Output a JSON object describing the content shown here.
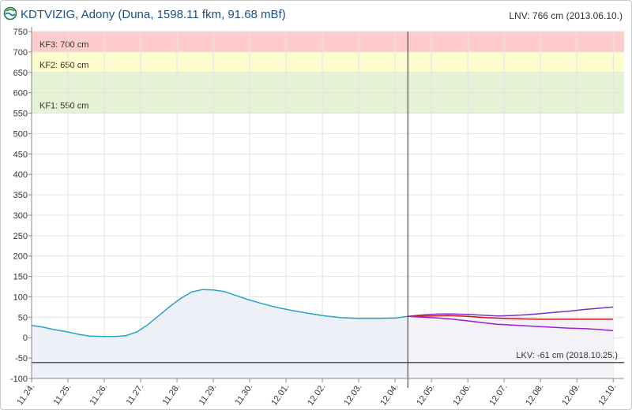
{
  "header": {
    "title": "KDTVIZIG, Adony (Duna, 1598.11 fkm, 91.68 mBf)",
    "lnv": "LNV: 766 cm (2013.06.10.)",
    "logo_icon": "water-gauge-logo-icon"
  },
  "chart_data": {
    "type": "line",
    "title": "KDTVIZIG, Adony (Duna, 1598.11 fkm, 91.68 mBf)",
    "xlabel": "",
    "ylabel": "",
    "ylim": [
      -100,
      750
    ],
    "yticks": [
      -100,
      -50,
      0,
      50,
      100,
      150,
      200,
      250,
      300,
      350,
      400,
      450,
      500,
      550,
      600,
      650,
      700,
      750
    ],
    "xticks": [
      "11.24.",
      "11.25.",
      "11.26.",
      "11.27.",
      "11.28.",
      "11.29.",
      "11.30.",
      "12.01.",
      "12.02.",
      "12.03.",
      "12.04.",
      "12.05.",
      "12.06.",
      "12.07.",
      "12.08.",
      "12.09.",
      "12.10."
    ],
    "xlim": [
      0,
      16.3
    ],
    "grid": true,
    "now_x": 10.35,
    "bands": [
      {
        "label": "KF3: 700 cm",
        "from": 700,
        "to": 750,
        "color": "#ffcccc"
      },
      {
        "label": "KF2: 650 cm",
        "from": 650,
        "to": 700,
        "color": "#fcfccc"
      },
      {
        "label": "KF1: 550 cm",
        "from": 550,
        "to": 650,
        "color": "#e6f2d5"
      }
    ],
    "lkv": {
      "label": "LKV: -61 cm (2018.10.25.)",
      "value": -61
    },
    "series": [
      {
        "color": "#27a3c8",
        "x": [
          0,
          0.3,
          0.6,
          1.0,
          1.3,
          1.6,
          2.0,
          2.3,
          2.6,
          2.9,
          3.2,
          3.5,
          3.8,
          4.1,
          4.4,
          4.7,
          5.0,
          5.3,
          5.6,
          6.0,
          6.4,
          6.8,
          7.2,
          7.6,
          8.0,
          8.5,
          9.0,
          9.5,
          10.0,
          10.35
        ],
        "y": [
          30,
          26,
          20,
          14,
          8,
          4,
          3,
          3,
          5,
          14,
          32,
          54,
          76,
          96,
          112,
          118,
          117,
          113,
          104,
          92,
          82,
          73,
          66,
          60,
          54,
          49,
          47,
          47,
          48,
          52
        ]
      },
      {
        "color": "#7a2fc4",
        "x": [
          10.35,
          10.8,
          11.2,
          11.6,
          12.0,
          12.4,
          12.8,
          13.2,
          13.6,
          14.0,
          14.4,
          14.8,
          15.2,
          15.6,
          16.0
        ],
        "y": [
          52,
          56,
          58,
          58,
          57,
          55,
          53,
          54,
          56,
          59,
          62,
          65,
          69,
          72,
          75
        ]
      },
      {
        "color": "#c81414",
        "x": [
          10.35,
          11.0,
          11.5,
          12.0,
          12.5,
          13.0,
          13.5,
          14.0,
          14.5,
          15.0,
          15.5,
          16.0
        ],
        "y": [
          52,
          53,
          54,
          52,
          49,
          47,
          46,
          45,
          45,
          45,
          45,
          45
        ]
      },
      {
        "color": "#9a1fd8",
        "x": [
          10.35,
          10.8,
          11.2,
          11.6,
          12.0,
          12.4,
          12.8,
          13.2,
          13.6,
          14.0,
          14.4,
          14.8,
          15.2,
          15.6,
          16.0
        ],
        "y": [
          52,
          50,
          48,
          45,
          41,
          37,
          33,
          31,
          29,
          27,
          25,
          23,
          22,
          20,
          17
        ]
      }
    ]
  }
}
